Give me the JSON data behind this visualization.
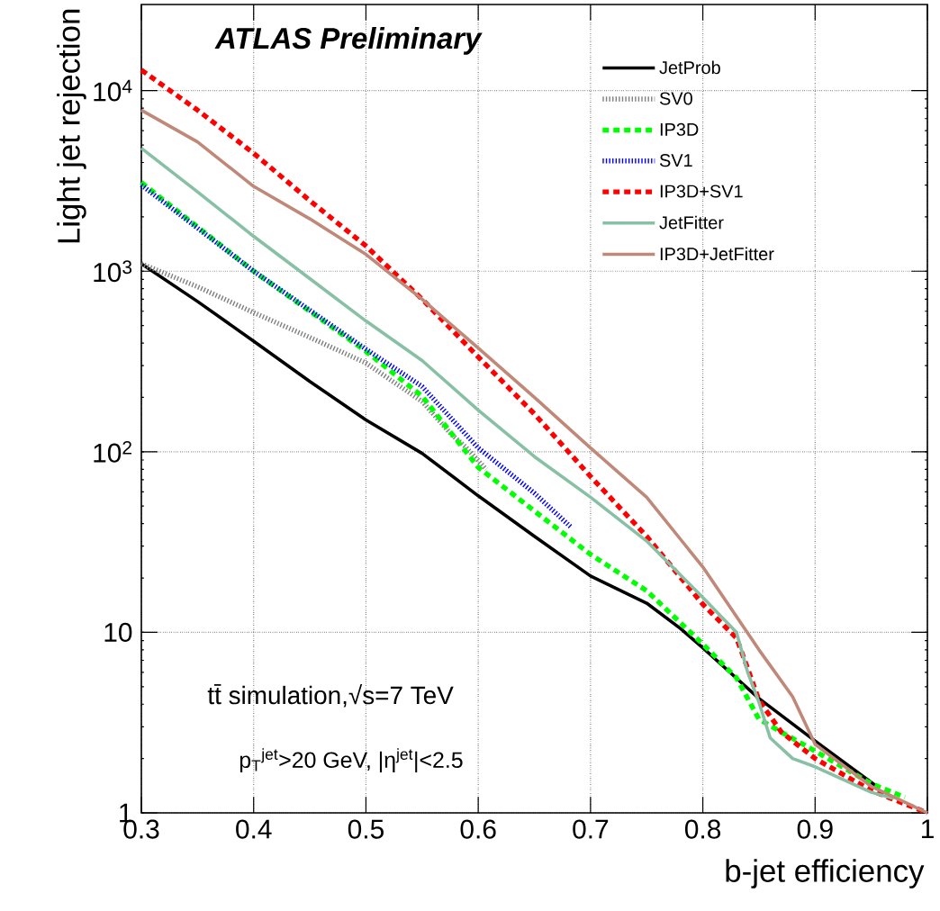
{
  "chart_data": {
    "type": "line",
    "xlabel": "b-jet efficiency",
    "ylabel": "Light jet rejection",
    "annotations": [
      "ATLAS Preliminary",
      "tt̄ simulation,√s=7 TeV",
      "p$_{T}$$^{jet}$>20 GeV, |η$^{jet}$|<2.5"
    ],
    "xlim": [
      0.3,
      1.0
    ],
    "ylim": [
      1,
      30000
    ],
    "log": "y",
    "grid": true,
    "legend": "top right",
    "xticks": [
      0.3,
      0.4,
      0.5,
      0.6,
      0.7,
      0.8,
      0.9,
      {
        "value": 1.0,
        "label": "1"
      }
    ],
    "yticks": [
      1,
      10,
      {
        "value": 100,
        "label": "10$^{2}$"
      },
      {
        "value": 1000,
        "label": "10$^{3}$"
      },
      {
        "value": 10000,
        "label": "10$^{4}$"
      }
    ],
    "series": [
      {
        "name": "JetProb",
        "color": "#000000",
        "line_style": "solid",
        "x": [
          0.3,
          0.35,
          0.4,
          0.45,
          0.5,
          0.55,
          0.6,
          0.65,
          0.7,
          0.75,
          0.78,
          0.8,
          0.85,
          0.9,
          0.955
        ],
        "values": [
          1100,
          680,
          410,
          245,
          150,
          98,
          57,
          34,
          20.5,
          14.5,
          10.5,
          8.2,
          4.3,
          2.5,
          1.4
        ]
      },
      {
        "name": "SV0",
        "color": "#808080",
        "line_style": "dotted",
        "x": [
          0.3,
          0.35,
          0.4,
          0.45,
          0.5,
          0.55,
          0.576,
          0.589,
          0.607
        ],
        "values": [
          1100,
          820,
          590,
          430,
          310,
          190,
          125,
          106,
          80
        ]
      },
      {
        "name": "IP3D",
        "color": "#00ff00",
        "line_style": "dashed",
        "x": [
          0.3,
          0.4,
          0.5,
          0.55,
          0.6,
          0.65,
          0.7,
          0.75,
          0.8,
          0.83,
          0.85,
          0.87,
          0.9,
          0.95,
          0.98
        ],
        "values": [
          3100,
          1000,
          360,
          203,
          82,
          47,
          27,
          17,
          8.6,
          5.6,
          3.3,
          2.8,
          2.2,
          1.45,
          1.22
        ]
      },
      {
        "name": "SV1",
        "color": "#0000ff",
        "line_style": "dotted",
        "x": [
          0.3,
          0.4,
          0.5,
          0.55,
          0.6,
          0.65,
          0.683
        ],
        "values": [
          3000,
          1000,
          370,
          230,
          105,
          59,
          38
        ]
      },
      {
        "name": "IP3D+SV1",
        "color": "#ff0000",
        "line_style": "dashed",
        "x": [
          0.3,
          0.35,
          0.4,
          0.45,
          0.5,
          0.55,
          0.6,
          0.65,
          0.7,
          0.75,
          0.8,
          0.83,
          0.84,
          0.85,
          0.87,
          0.9,
          0.95,
          1.0
        ],
        "values": [
          13000,
          7800,
          4500,
          2460,
          1380,
          700,
          335,
          162,
          73,
          34,
          14.3,
          9.3,
          6.3,
          4.2,
          2.8,
          2.0,
          1.33,
          1.0
        ]
      },
      {
        "name": "JetFitter",
        "color": "#88c0a6",
        "line_style": "solid",
        "x": [
          0.3,
          0.35,
          0.4,
          0.45,
          0.5,
          0.55,
          0.6,
          0.65,
          0.7,
          0.75,
          0.8,
          0.83,
          0.84,
          0.85,
          0.86,
          0.88,
          0.9,
          0.95,
          0.97
        ],
        "values": [
          4800,
          2750,
          1560,
          910,
          530,
          320,
          170,
          94,
          56,
          32,
          15.6,
          10,
          6.0,
          4.1,
          2.6,
          2.0,
          1.8,
          1.3,
          1.2
        ]
      },
      {
        "name": "IP3D+JetFitter",
        "color": "#c08878",
        "line_style": "solid",
        "x": [
          0.3,
          0.35,
          0.4,
          0.45,
          0.5,
          0.55,
          0.6,
          0.65,
          0.7,
          0.75,
          0.8,
          0.85,
          0.88,
          0.9,
          0.95,
          1.0
        ],
        "values": [
          7800,
          5200,
          2950,
          1950,
          1240,
          700,
          375,
          200,
          105,
          56,
          23,
          8.0,
          4.4,
          2.4,
          1.4,
          1.0
        ]
      }
    ]
  }
}
